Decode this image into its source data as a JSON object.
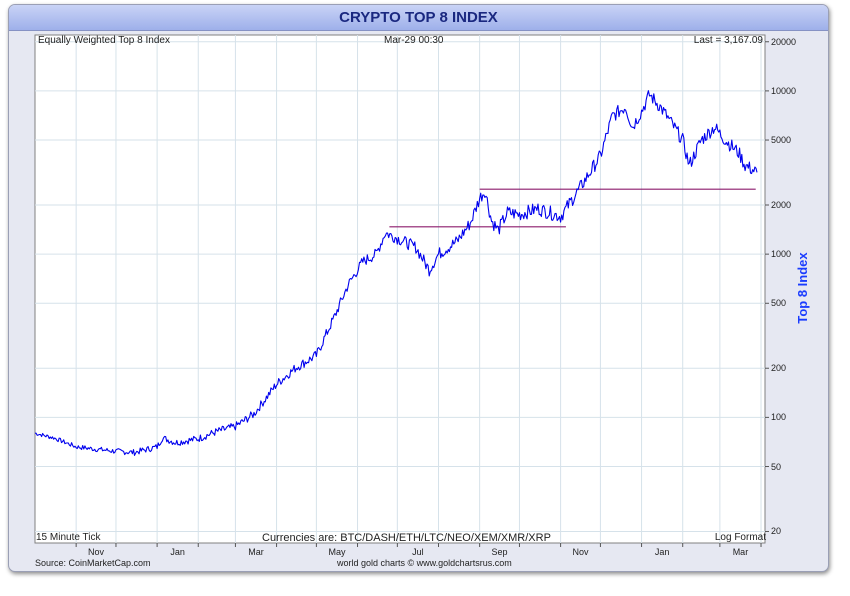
{
  "chart_data": {
    "type": "line",
    "title": "CRYPTO TOP 8 INDEX",
    "subtitle_left": "Equally Weighted Top 8 Index",
    "subtitle_center": "Mar-29  00:30",
    "last_label": "Last = 3,167.09",
    "ylabel": "Top 8 Index",
    "yscale": "log",
    "ylim": [
      17,
      22000
    ],
    "yticks": [
      20,
      50,
      100,
      200,
      500,
      1000,
      2000,
      5000,
      10000,
      20000
    ],
    "xlabels": [
      "Nov",
      "Jan",
      "Mar",
      "May",
      "Jul",
      "Sep",
      "Nov",
      "Jan",
      "Mar"
    ],
    "x": [
      "2016-10-01",
      "2016-10-15",
      "2016-11-01",
      "2016-11-15",
      "2016-12-01",
      "2016-12-15",
      "2017-01-01",
      "2017-01-05",
      "2017-01-15",
      "2017-02-01",
      "2017-02-15",
      "2017-03-01",
      "2017-03-15",
      "2017-04-01",
      "2017-04-15",
      "2017-05-01",
      "2017-05-15",
      "2017-05-25",
      "2017-06-05",
      "2017-06-15",
      "2017-06-22",
      "2017-07-01",
      "2017-07-15",
      "2017-07-25",
      "2017-08-01",
      "2017-08-15",
      "2017-08-25",
      "2017-09-01",
      "2017-09-05",
      "2017-09-10",
      "2017-09-15",
      "2017-09-22",
      "2017-10-01",
      "2017-10-15",
      "2017-11-01",
      "2017-11-15",
      "2017-12-01",
      "2017-12-10",
      "2017-12-20",
      "2017-12-25",
      "2018-01-01",
      "2018-01-07",
      "2018-01-15",
      "2018-01-20",
      "2018-02-01",
      "2018-02-06",
      "2018-02-15",
      "2018-02-25",
      "2018-03-05",
      "2018-03-15",
      "2018-03-20",
      "2018-03-29"
    ],
    "values": [
      80,
      75,
      66,
      64,
      62,
      61,
      66,
      75,
      70,
      74,
      82,
      88,
      105,
      160,
      200,
      240,
      420,
      650,
      900,
      1000,
      1350,
      1250,
      1100,
      800,
      1000,
      1200,
      1550,
      2200,
      2450,
      1600,
      1400,
      1800,
      1750,
      1900,
      1700,
      2500,
      4000,
      7000,
      8000,
      6000,
      7500,
      9500,
      8000,
      7000,
      5000,
      3500,
      5000,
      6000,
      5000,
      4200,
      3500,
      3167
    ],
    "horizontal_lines": [
      {
        "value": 1470,
        "from": "2017-06-25",
        "to": "2017-11-05"
      },
      {
        "value": 2500,
        "from": "2017-09-01",
        "to": "2018-03-28"
      }
    ],
    "grid": true,
    "notes": {
      "tick": "15 Minute Tick",
      "currencies": "Currencies are: BTC/DASH/ETH/LTC/NEO/XEM/XMR/XRP",
      "format": "Log Format"
    },
    "source": "Source: CoinMarketCap.com",
    "credit": "world gold charts © www.goldchartsrus.com",
    "colors": {
      "line": "#0000ee",
      "hline": "#8b1a6b",
      "grid": "#d6e2ea",
      "ylabel": "#1a3cff"
    }
  }
}
